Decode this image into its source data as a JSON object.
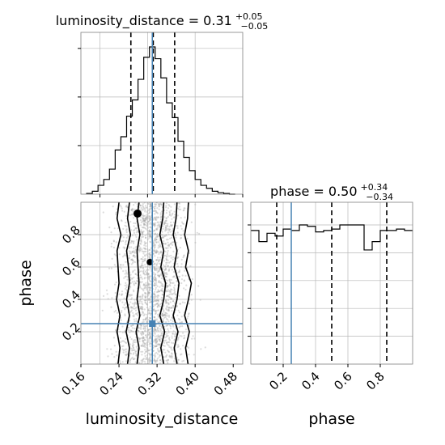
{
  "chart_data": [
    {
      "type": "histogram",
      "panel": "top-left",
      "parameter": "luminosity_distance",
      "title": {
        "base": "luminosity_distance = 0.31",
        "sup": "+0.05",
        "sub": "−0.05"
      },
      "bins": [
        0.172,
        0.184,
        0.196,
        0.208,
        0.22,
        0.232,
        0.244,
        0.256,
        0.268,
        0.28,
        0.292,
        0.304,
        0.316,
        0.328,
        0.34,
        0.352,
        0.364,
        0.376,
        0.388,
        0.4,
        0.412,
        0.424,
        0.436,
        0.448,
        0.46,
        0.472,
        0.484
      ],
      "counts": [
        0.005,
        0.02,
        0.06,
        0.1,
        0.17,
        0.3,
        0.39,
        0.53,
        0.64,
        0.78,
        0.93,
        1.0,
        0.92,
        0.79,
        0.62,
        0.52,
        0.36,
        0.25,
        0.16,
        0.1,
        0.06,
        0.04,
        0.02,
        0.01,
        0.005,
        0.0
      ],
      "xlim": [
        0.16,
        0.5
      ],
      "quantiles": [
        0.265,
        0.312,
        0.357
      ],
      "truth": 0.31,
      "grid": true
    },
    {
      "type": "histogram",
      "panel": "bottom-right",
      "parameter": "phase",
      "title": {
        "base": "phase = 0.50",
        "sup": "+0.34",
        "sub": "−0.34"
      },
      "bins": [
        0.0,
        0.05,
        0.1,
        0.15,
        0.2,
        0.25,
        0.3,
        0.35,
        0.4,
        0.45,
        0.5,
        0.55,
        0.6,
        0.65,
        0.7,
        0.75,
        0.8,
        0.85,
        0.9,
        0.95,
        1.0
      ],
      "counts": [
        0.96,
        0.88,
        0.94,
        0.92,
        0.97,
        0.96,
        1.0,
        0.99,
        0.95,
        0.96,
        0.97,
        1.0,
        1.0,
        1.0,
        0.82,
        0.88,
        0.96,
        0.96,
        0.97,
        0.96
      ],
      "xlim": [
        0.0,
        1.0
      ],
      "xticks": [
        0.2,
        0.4,
        0.6,
        0.8
      ],
      "quantiles": [
        0.16,
        0.5,
        0.84
      ],
      "truth": 0.25,
      "grid": true
    },
    {
      "type": "2d-density",
      "panel": "bottom-left",
      "x_parameter": "luminosity_distance",
      "y_parameter": "phase",
      "xlabel": "luminosity_distance",
      "ylabel": "phase",
      "xlim": [
        0.16,
        0.5
      ],
      "ylim": [
        0.0,
        1.0
      ],
      "xticks": [
        "0.16",
        "0.24",
        "0.32",
        "0.40",
        "0.48"
      ],
      "yticks": [
        "0.2",
        "0.4",
        "0.6",
        "0.8"
      ],
      "truth": {
        "x": 0.31,
        "y": 0.25
      },
      "contour_columns": {
        "y": [
          0.0,
          0.1,
          0.2,
          0.3,
          0.4,
          0.5,
          0.6,
          0.7,
          0.8,
          0.9,
          1.0
        ],
        "level_outer": {
          "left": [
            0.238,
            0.242,
            0.236,
            0.242,
            0.235,
            0.24,
            0.238,
            0.236,
            0.244,
            0.236,
            0.24
          ],
          "right": [
            0.385,
            0.38,
            0.388,
            0.378,
            0.386,
            0.392,
            0.38,
            0.386,
            0.378,
            0.384,
            0.386
          ]
        },
        "level_mid": {
          "left": [
            0.258,
            0.262,
            0.255,
            0.262,
            0.256,
            0.262,
            0.26,
            0.256,
            0.264,
            0.258,
            0.262
          ],
          "right": [
            0.362,
            0.356,
            0.364,
            0.354,
            0.362,
            0.366,
            0.356,
            0.362,
            0.354,
            0.36,
            0.362
          ]
        },
        "level_inner": {
          "left": [
            0.278,
            0.282,
            0.276,
            0.284,
            0.278,
            0.282,
            0.28,
            0.278,
            0.284,
            0.278,
            0.282
          ],
          "right": [
            0.334,
            0.328,
            0.336,
            0.326,
            0.334,
            0.338,
            0.328,
            0.334,
            0.326,
            0.332,
            0.334
          ]
        }
      },
      "outlier_blobs": [
        {
          "x": 0.279,
          "y": 0.93
        },
        {
          "x": 0.305,
          "y": 0.63
        }
      ],
      "grid": true
    }
  ],
  "colors": {
    "truth": "#4682b4",
    "line": "#000000",
    "scatter": "#9a9a9a",
    "grid": "#b8b8b8",
    "frame": "#808080"
  }
}
